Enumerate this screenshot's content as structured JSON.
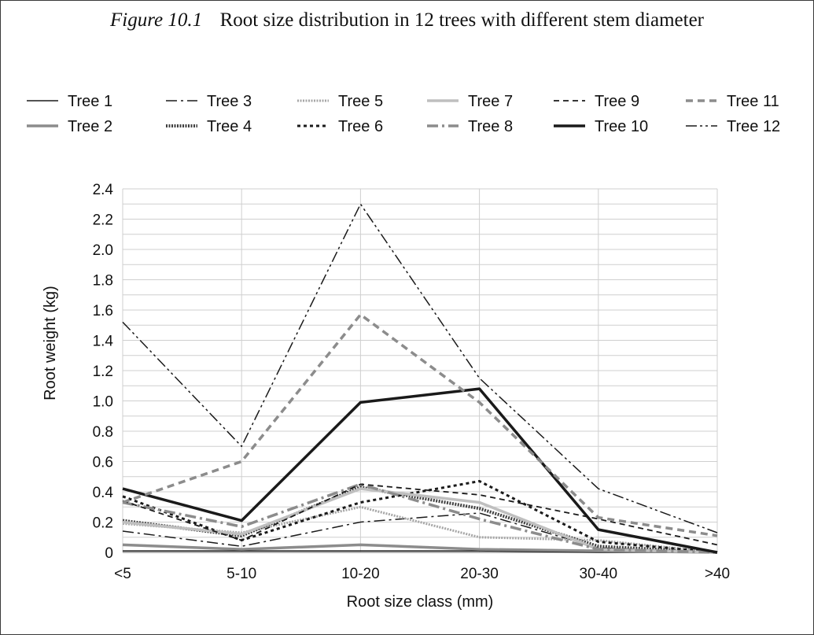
{
  "figure": {
    "label": "Figure 10.1",
    "caption": "Root size distribution in 12 trees with different stem diameter"
  },
  "chart_data": {
    "type": "line",
    "xlabel": "Root size class (mm)",
    "ylabel": "Root weight (kg)",
    "categories": [
      "<5",
      "5-10",
      "10-20",
      "20-30",
      "30-40",
      ">40"
    ],
    "ylim": [
      0,
      2.4
    ],
    "yticks": [
      "0",
      "0.2",
      "0.4",
      "0.6",
      "0.8",
      "1.0",
      "1.2",
      "1.4",
      "1.6",
      "1.8",
      "2.0",
      "2.2",
      "2.4"
    ],
    "grid": true,
    "legend_position": "top",
    "series": [
      {
        "name": "Tree 1",
        "values": [
          0.01,
          0.01,
          0.01,
          0.01,
          0.0,
          0.0
        ],
        "color": "#1a1a1a",
        "dash": "solid",
        "width": 1.5
      },
      {
        "name": "Tree 2",
        "values": [
          0.05,
          0.02,
          0.05,
          0.02,
          0.01,
          0.0
        ],
        "color": "#8c8c8c",
        "dash": "solid",
        "width": 3.5
      },
      {
        "name": "Tree 3",
        "values": [
          0.14,
          0.04,
          0.2,
          0.26,
          0.03,
          0.0
        ],
        "color": "#1a1a1a",
        "dash": "dashdot",
        "width": 1.5
      },
      {
        "name": "Tree 4",
        "values": [
          0.21,
          0.11,
          0.43,
          0.29,
          0.04,
          0.0
        ],
        "color": "#404040",
        "dash": "dense",
        "width": 4.0
      },
      {
        "name": "Tree 5",
        "values": [
          0.19,
          0.13,
          0.3,
          0.1,
          0.08,
          0.0
        ],
        "color": "#a6a6a6",
        "dash": "dense",
        "width": 3.0
      },
      {
        "name": "Tree 6",
        "values": [
          0.37,
          0.08,
          0.33,
          0.47,
          0.07,
          0.0
        ],
        "color": "#1a1a1a",
        "dash": "dotted",
        "width": 3.0
      },
      {
        "name": "Tree 7",
        "values": [
          0.2,
          0.12,
          0.42,
          0.33,
          0.02,
          0.0
        ],
        "color": "#bfbfbf",
        "dash": "solid",
        "width": 3.5
      },
      {
        "name": "Tree 8",
        "values": [
          0.33,
          0.17,
          0.45,
          0.22,
          0.02,
          0.0
        ],
        "color": "#8c8c8c",
        "dash": "dashdot",
        "width": 3.5
      },
      {
        "name": "Tree 9",
        "values": [
          0.34,
          0.08,
          0.45,
          0.38,
          0.22,
          0.05
        ],
        "color": "#1a1a1a",
        "dash": "dashed",
        "width": 1.8
      },
      {
        "name": "Tree 10",
        "values": [
          0.42,
          0.21,
          0.99,
          1.08,
          0.15,
          0.0
        ],
        "color": "#1a1a1a",
        "dash": "solid",
        "width": 3.5
      },
      {
        "name": "Tree 11",
        "values": [
          0.33,
          0.6,
          1.57,
          0.99,
          0.23,
          0.11
        ],
        "color": "#8c8c8c",
        "dash": "dashed",
        "width": 3.5
      },
      {
        "name": "Tree 12",
        "values": [
          1.52,
          0.7,
          2.3,
          1.15,
          0.42,
          0.13
        ],
        "color": "#1a1a1a",
        "dash": "dashdotdot",
        "width": 1.5
      }
    ]
  }
}
